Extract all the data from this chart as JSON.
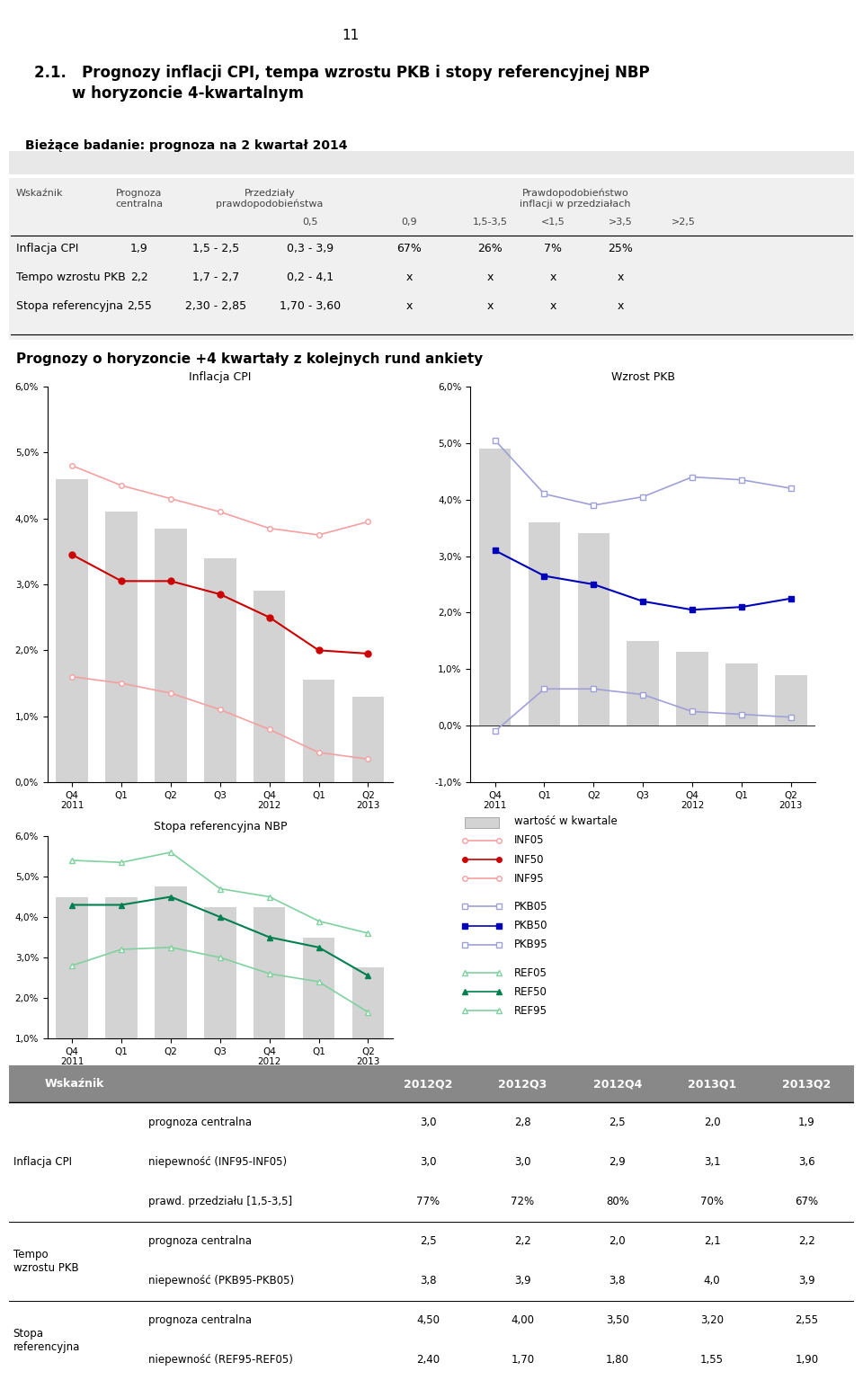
{
  "page_number": "11",
  "survey_label": "Bieżące badanie: prognoza na 2 kwartał 2014",
  "table_rows": [
    [
      "Inflacja CPI",
      "1,9",
      "1,5 - 2,5",
      "0,3 - 3,9",
      "67%",
      "26%",
      "7%",
      "25%"
    ],
    [
      "Tempo wzrostu PKB",
      "2,2",
      "1,7 - 2,7",
      "0,2 - 4,1",
      "x",
      "x",
      "x",
      "x"
    ],
    [
      "Stopa referencyjna",
      "2,55",
      "2,30 - 2,85",
      "1,70 - 3,60",
      "x",
      "x",
      "x",
      "x"
    ]
  ],
  "section2_title": "Prognozy o horyzoncie +4 kwartały z kolejnych rund ankiety",
  "x_positions": [
    0,
    1,
    2,
    3,
    4,
    5,
    6
  ],
  "cpi_bars": [
    0.046,
    0.041,
    0.0385,
    0.034,
    0.029,
    0.0155,
    0.013
  ],
  "cpi_inf05": [
    0.048,
    0.045,
    0.043,
    0.041,
    0.0385,
    0.0375,
    0.0395
  ],
  "cpi_inf50": [
    0.0345,
    0.0305,
    0.0305,
    0.0285,
    0.025,
    0.02,
    0.0195
  ],
  "cpi_inf95": [
    0.016,
    0.015,
    0.0135,
    0.011,
    0.008,
    0.0045,
    0.0035
  ],
  "pkb_bars": [
    0.049,
    0.036,
    0.034,
    0.015,
    0.013,
    0.011,
    0.009
  ],
  "pkb_pkb05": [
    0.0505,
    0.041,
    0.039,
    0.0405,
    0.044,
    0.0435,
    0.042
  ],
  "pkb_pkb50": [
    0.031,
    0.0265,
    0.025,
    0.022,
    0.0205,
    0.021,
    0.0225
  ],
  "pkb_pkb95": [
    -0.001,
    0.0065,
    0.0065,
    0.0055,
    0.0025,
    0.002,
    0.0015
  ],
  "ref_bars": [
    0.045,
    0.045,
    0.0475,
    0.0425,
    0.0425,
    0.035,
    0.0275
  ],
  "ref_ref05": [
    0.054,
    0.0535,
    0.056,
    0.047,
    0.045,
    0.039,
    0.036
  ],
  "ref_ref50": [
    0.043,
    0.043,
    0.045,
    0.04,
    0.035,
    0.0325,
    0.0255
  ],
  "ref_ref95": [
    0.028,
    0.032,
    0.0325,
    0.03,
    0.026,
    0.024,
    0.0165
  ],
  "bar_color": "#d3d3d3",
  "inf_color_light": "#f4a0a0",
  "inf_color_dark": "#cc0000",
  "pkb_color_light": "#a0a0d8",
  "pkb_color_dark": "#0000bb",
  "ref_color_light": "#80d0a0",
  "ref_color_dark": "#008050",
  "bottom_table_header": [
    "Wskaźnik",
    "",
    "2012Q2",
    "2012Q3",
    "2012Q4",
    "2013Q1",
    "2013Q2"
  ],
  "bottom_table_data": [
    [
      "Inflacja CPI",
      "prognoza centralna",
      "3,0",
      "2,8",
      "2,5",
      "2,0",
      "1,9"
    ],
    [
      "",
      "niepewność (INF95-INF05)",
      "3,0",
      "3,0",
      "2,9",
      "3,1",
      "3,6"
    ],
    [
      "",
      "prawd. przedziału [1,5-3,5]",
      "77%",
      "72%",
      "80%",
      "70%",
      "67%"
    ],
    [
      "Tempo\nwzrostu PKB",
      "prognoza centralna",
      "2,5",
      "2,2",
      "2,0",
      "2,1",
      "2,2"
    ],
    [
      "",
      "niepewność (PKB95-PKB05)",
      "3,8",
      "3,9",
      "3,8",
      "4,0",
      "3,9"
    ],
    [
      "Stopa\nreferencyjna",
      "prognoza centralna",
      "4,50",
      "4,00",
      "3,50",
      "3,20",
      "2,55"
    ],
    [
      "",
      "niepewność (REF95-REF05)",
      "2,40",
      "1,70",
      "1,80",
      "1,55",
      "1,90"
    ]
  ],
  "group_info": [
    [
      0,
      3,
      "Inflacja CPI"
    ],
    [
      3,
      5,
      "Tempo\nwzrostu PKB"
    ],
    [
      5,
      7,
      "Stopa\nreferencyjna"
    ]
  ]
}
